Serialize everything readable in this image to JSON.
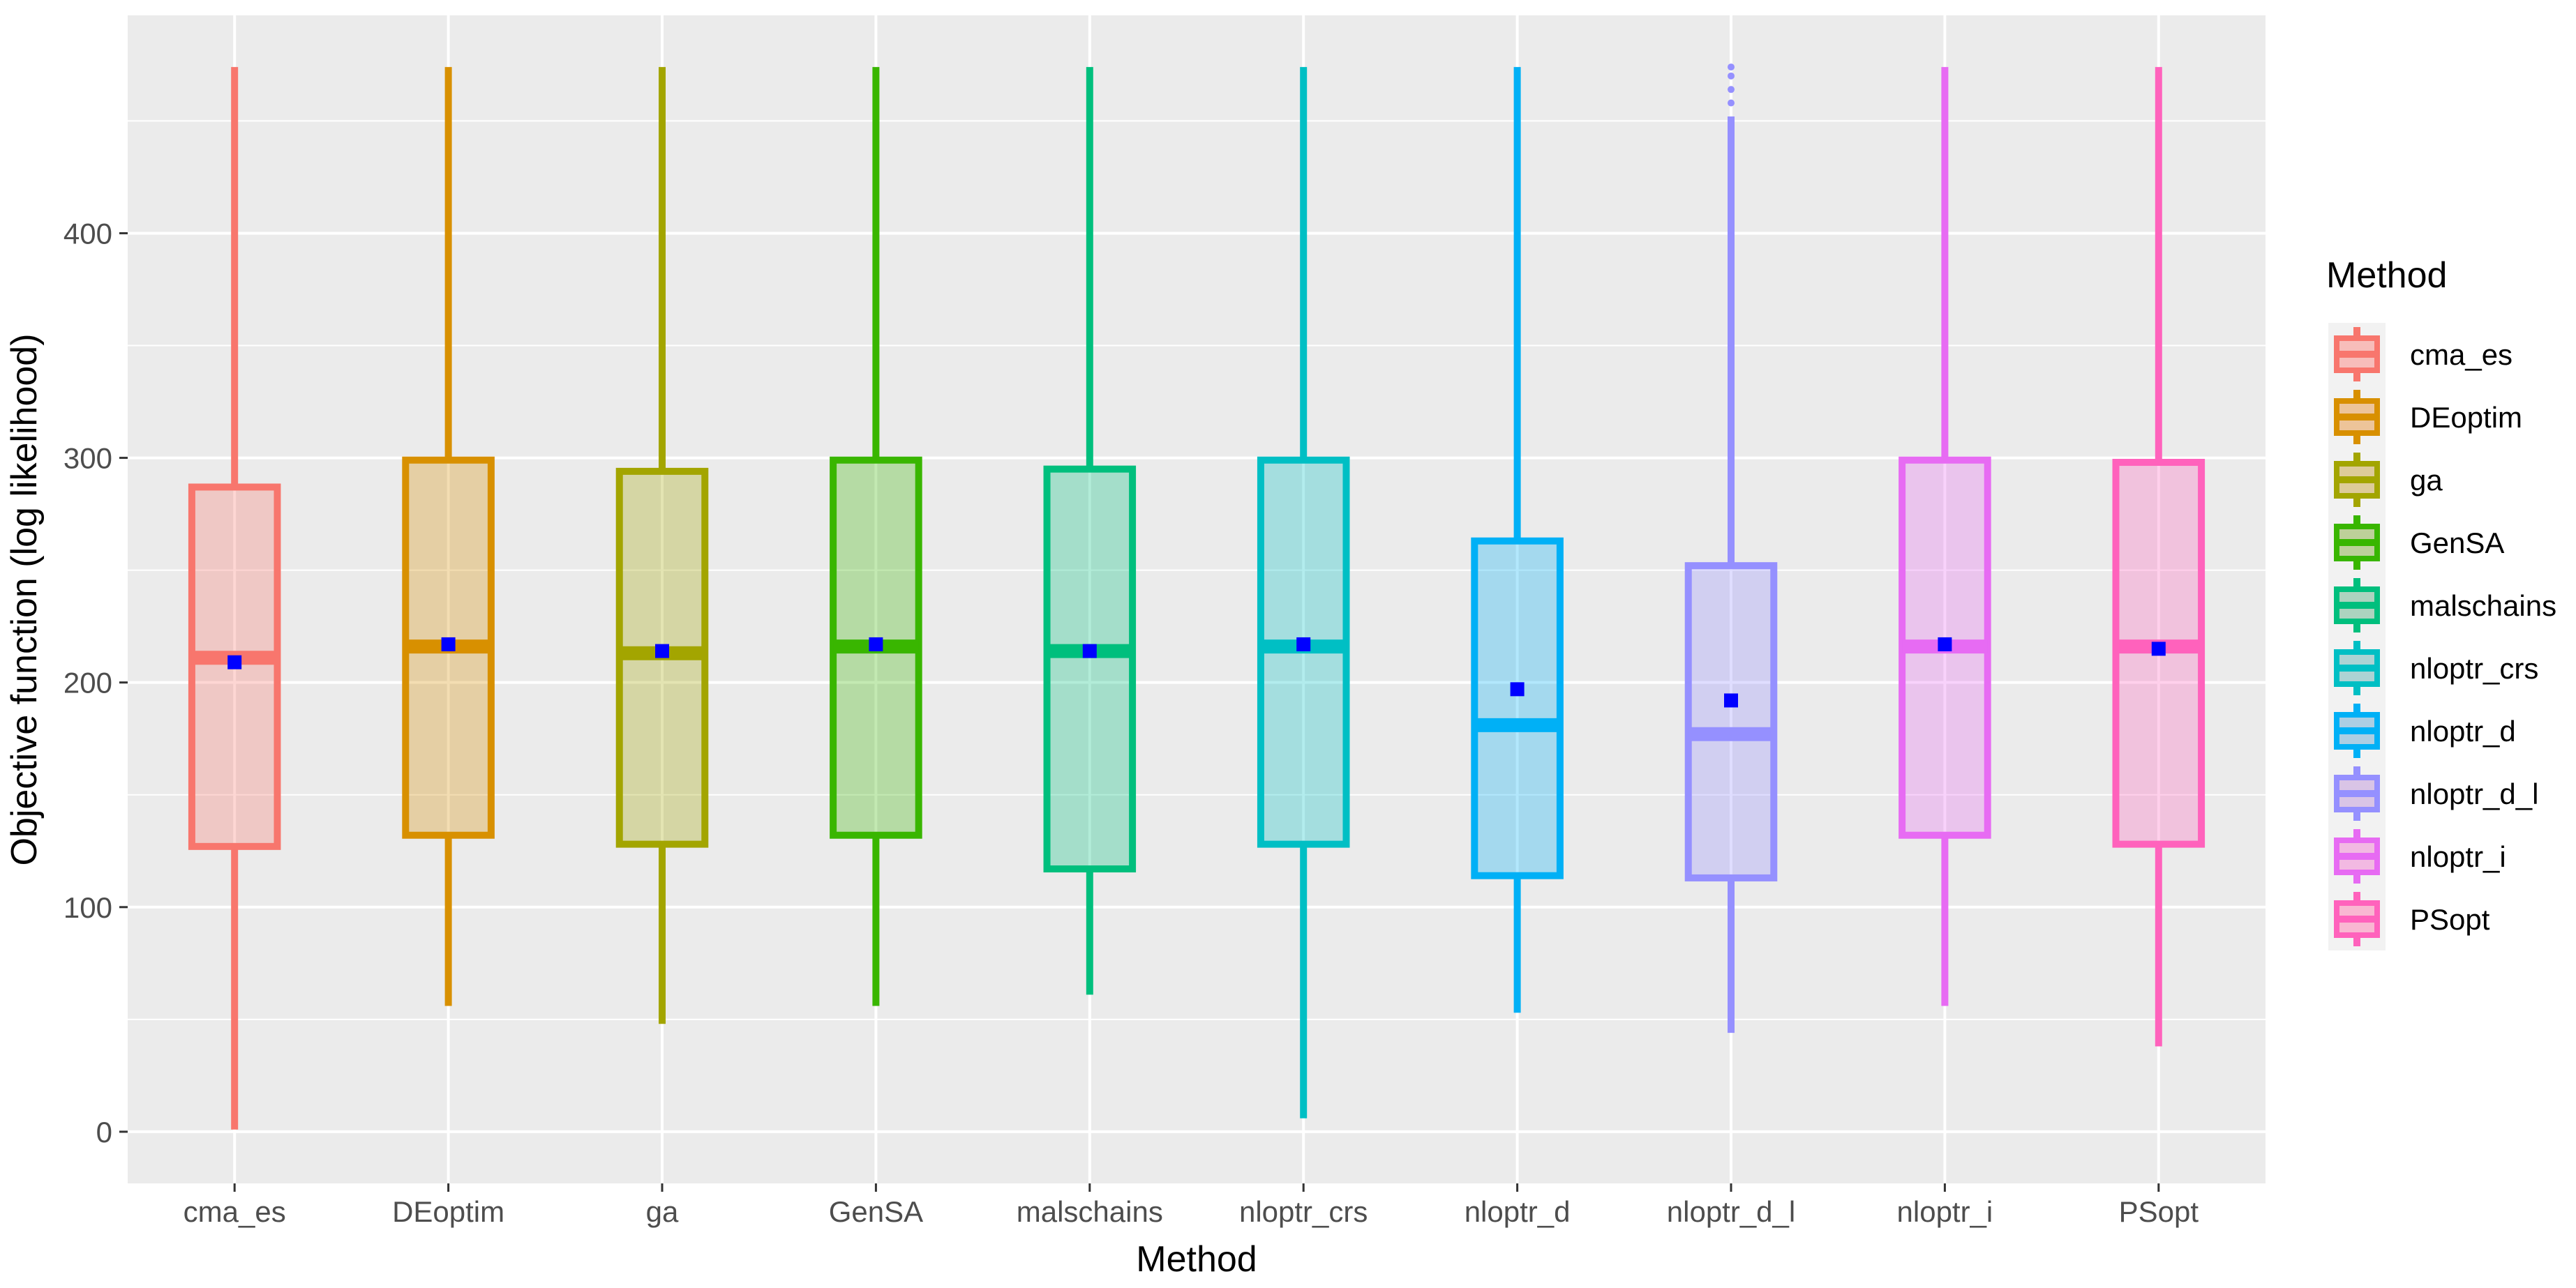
{
  "chart_data": {
    "type": "boxplot",
    "title": "",
    "xlabel": "Method",
    "ylabel": "Objective function (log likelihood)",
    "ylim": [
      -23,
      497
    ],
    "yticks": [
      0,
      100,
      200,
      300,
      400
    ],
    "grid": true,
    "legend": {
      "title": "Method",
      "position": "right"
    },
    "mean_marker_color": "#0000ff",
    "categories": [
      "cma_es",
      "DEoptim",
      "ga",
      "GenSA",
      "malschains",
      "nloptr_crs",
      "nloptr_d",
      "nloptr_d_l",
      "nloptr_i",
      "PSopt"
    ],
    "colors": [
      "#f8766d",
      "#d89000",
      "#a3a500",
      "#39b600",
      "#00bf7d",
      "#00bfc4",
      "#00b0f6",
      "#9590ff",
      "#e76bf3",
      "#ff62bc"
    ],
    "series": [
      {
        "name": "cma_es",
        "min": 1,
        "q1": 127,
        "median": 211,
        "q3": 287,
        "max": 474,
        "mean": 209
      },
      {
        "name": "DEoptim",
        "min": 56,
        "q1": 132,
        "median": 216,
        "q3": 299,
        "max": 474,
        "mean": 217
      },
      {
        "name": "ga",
        "min": 48,
        "q1": 128,
        "median": 213,
        "q3": 294,
        "max": 474,
        "mean": 214
      },
      {
        "name": "GenSA",
        "min": 56,
        "q1": 132,
        "median": 216,
        "q3": 299,
        "max": 474,
        "mean": 217
      },
      {
        "name": "malschains",
        "min": 61,
        "q1": 117,
        "median": 214,
        "q3": 295,
        "max": 474,
        "mean": 214
      },
      {
        "name": "nloptr_crs",
        "min": 6,
        "q1": 128,
        "median": 216,
        "q3": 299,
        "max": 474,
        "mean": 217
      },
      {
        "name": "nloptr_d",
        "min": 53,
        "q1": 114,
        "median": 181,
        "q3": 263,
        "max": 474,
        "mean": 197
      },
      {
        "name": "nloptr_d_l",
        "min": 44,
        "q1": 113,
        "median": 177,
        "q3": 252,
        "max": 452,
        "mean": 192,
        "outliers": [
          458,
          464,
          470,
          474
        ]
      },
      {
        "name": "nloptr_i",
        "min": 56,
        "q1": 132,
        "median": 216,
        "q3": 299,
        "max": 474,
        "mean": 217
      },
      {
        "name": "PSopt",
        "min": 38,
        "q1": 128,
        "median": 216,
        "q3": 298,
        "max": 474,
        "mean": 215
      }
    ]
  }
}
